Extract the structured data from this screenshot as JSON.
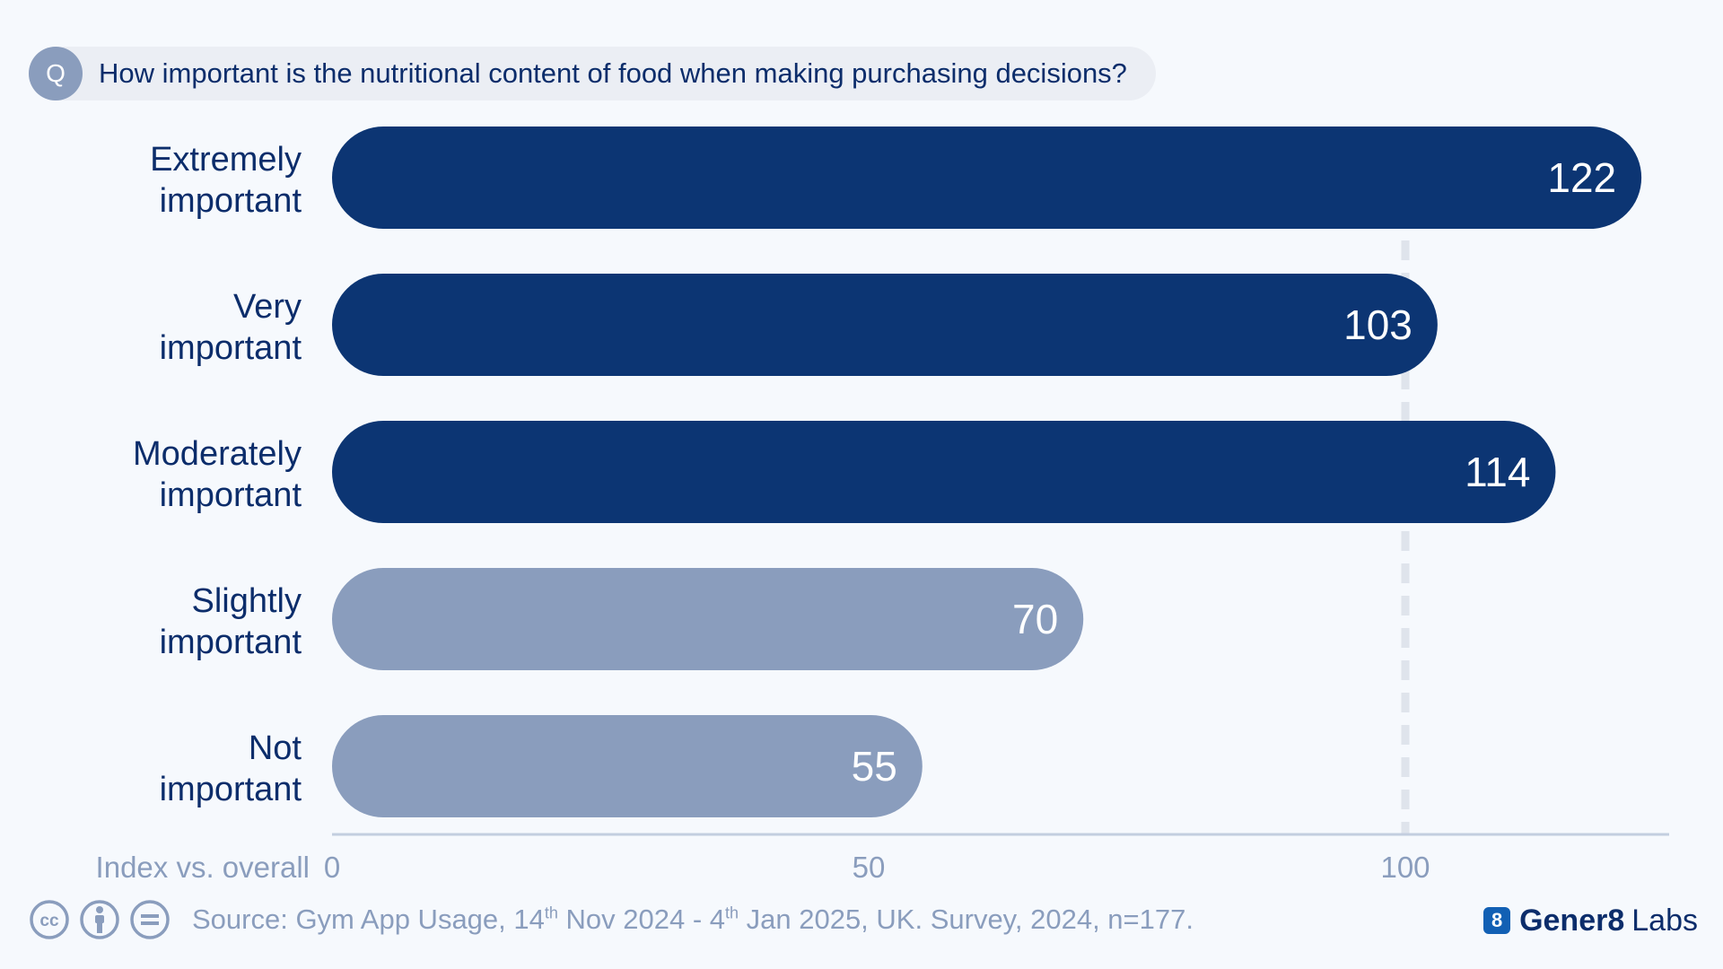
{
  "question": {
    "badge": "Q",
    "text": "How important is the nutritional content of food when making purchasing decisions?"
  },
  "chart_data": {
    "type": "bar",
    "orientation": "horizontal",
    "categories": [
      [
        "Extremely",
        "important"
      ],
      [
        "Very",
        "important"
      ],
      [
        "Moderately",
        "important"
      ],
      [
        "Slightly",
        "important"
      ],
      [
        "Not",
        "important"
      ]
    ],
    "values": [
      122,
      103,
      114,
      70,
      55
    ],
    "xlabel": "Index vs. overall",
    "xticks": [
      0,
      50,
      100
    ],
    "xlim": [
      0,
      124
    ],
    "reference_line": 100,
    "grid": false,
    "colors": {
      "above_reference": "#0c3573",
      "below_reference": "#8a9dbd",
      "label": "#0c2d6b",
      "axis": "#c3cedf",
      "tick_label": "#8a9dbd",
      "reference_line": "#dfe4ec",
      "value_label": "#ffffff"
    }
  },
  "footer": {
    "icons": [
      "cc-icon",
      "attribution-icon",
      "no-derivatives-icon"
    ],
    "source_parts": [
      "Source: Gym App Usage, 14",
      "th",
      " Nov 2024 - 4",
      "th",
      " Jan 2025, UK. Survey, 2024, n=177."
    ]
  },
  "brand": {
    "mark": "8",
    "name": "Gener8",
    "suffix": "Labs"
  }
}
